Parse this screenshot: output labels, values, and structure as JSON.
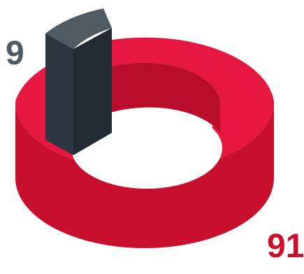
{
  "chart_data": {
    "type": "pie",
    "style": "3d-donut",
    "values": [
      91,
      9
    ],
    "series": [
      {
        "value": 91,
        "label": "91",
        "color": "#e5163f",
        "side_color": "#c8102e",
        "inner_color": "#b80e2b"
      },
      {
        "value": 9,
        "label": "9",
        "color": "#4f5a63",
        "side_color": "#2c3640",
        "inner_color": "#222b33"
      }
    ],
    "legend": "none",
    "grid": false
  }
}
